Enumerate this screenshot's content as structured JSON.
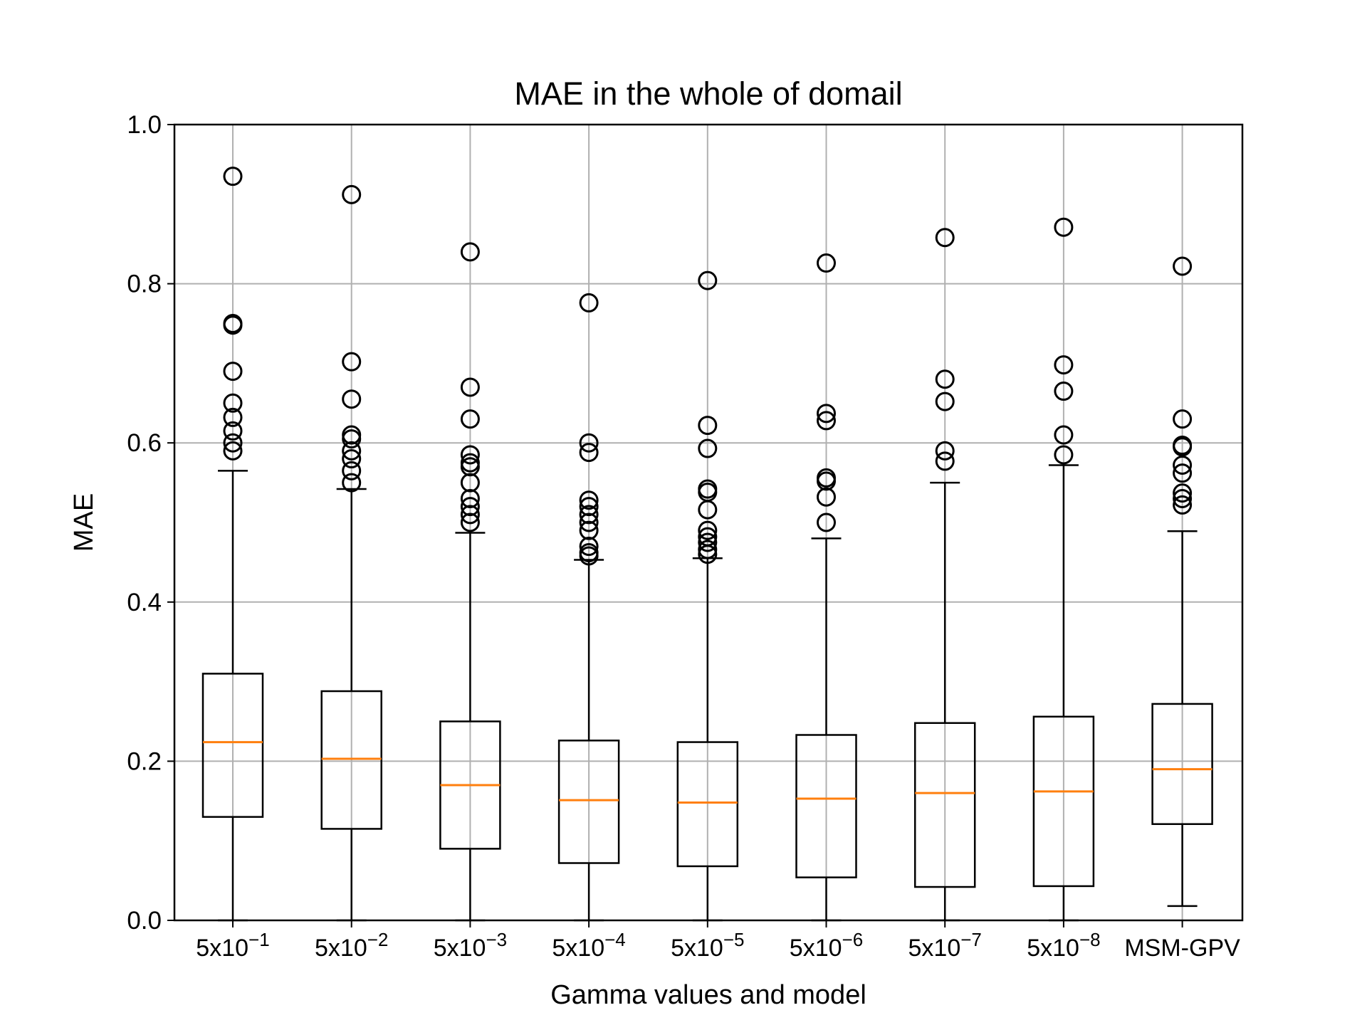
{
  "chart_data": {
    "type": "boxplot",
    "title": "MAE in the whole of domail",
    "xlabel": "Gamma values and model",
    "ylabel": "MAE",
    "ylim": [
      0,
      1.0
    ],
    "yticks": [
      "0.0",
      "0.2",
      "0.4",
      "0.6",
      "0.8",
      "1.0"
    ],
    "grid": true,
    "categories": [
      {
        "base": "5x10",
        "exp": "−1"
      },
      {
        "base": "5x10",
        "exp": "−2"
      },
      {
        "base": "5x10",
        "exp": "−3"
      },
      {
        "base": "5x10",
        "exp": "−4"
      },
      {
        "base": "5x10",
        "exp": "−5"
      },
      {
        "base": "5x10",
        "exp": "−6"
      },
      {
        "base": "5x10",
        "exp": "−7"
      },
      {
        "base": "5x10",
        "exp": "−8"
      },
      {
        "base": "MSM-GPV",
        "exp": ""
      }
    ],
    "boxes": [
      {
        "whislo": 0.0,
        "q1": 0.13,
        "med": 0.224,
        "q3": 0.31,
        "whishi": 0.565,
        "fliers": [
          0.935,
          0.75,
          0.748,
          0.69,
          0.65,
          0.632,
          0.615,
          0.6,
          0.59
        ]
      },
      {
        "whislo": 0.0,
        "q1": 0.115,
        "med": 0.203,
        "q3": 0.288,
        "whishi": 0.542,
        "fliers": [
          0.912,
          0.702,
          0.655,
          0.61,
          0.605,
          0.59,
          0.58,
          0.565,
          0.55
        ]
      },
      {
        "whislo": 0.0,
        "q1": 0.09,
        "med": 0.17,
        "q3": 0.25,
        "whishi": 0.487,
        "fliers": [
          0.84,
          0.67,
          0.63,
          0.585,
          0.575,
          0.57,
          0.55,
          0.53,
          0.52,
          0.51,
          0.5
        ]
      },
      {
        "whislo": 0.0,
        "q1": 0.072,
        "med": 0.151,
        "q3": 0.226,
        "whishi": 0.453,
        "fliers": [
          0.776,
          0.6,
          0.588,
          0.528,
          0.52,
          0.51,
          0.5,
          0.49,
          0.47,
          0.462,
          0.458
        ]
      },
      {
        "whislo": 0.0,
        "q1": 0.068,
        "med": 0.148,
        "q3": 0.224,
        "whishi": 0.455,
        "fliers": [
          0.804,
          0.622,
          0.593,
          0.542,
          0.538,
          0.516,
          0.49,
          0.482,
          0.475,
          0.466,
          0.46
        ]
      },
      {
        "whislo": 0.0,
        "q1": 0.054,
        "med": 0.153,
        "q3": 0.233,
        "whishi": 0.48,
        "fliers": [
          0.826,
          0.637,
          0.628,
          0.556,
          0.552,
          0.532,
          0.5
        ]
      },
      {
        "whislo": 0.0,
        "q1": 0.042,
        "med": 0.16,
        "q3": 0.248,
        "whishi": 0.55,
        "fliers": [
          0.858,
          0.68,
          0.652,
          0.59,
          0.577
        ]
      },
      {
        "whislo": 0.0,
        "q1": 0.043,
        "med": 0.162,
        "q3": 0.256,
        "whishi": 0.572,
        "fliers": [
          0.871,
          0.698,
          0.665,
          0.61,
          0.585
        ]
      },
      {
        "whislo": 0.018,
        "q1": 0.121,
        "med": 0.19,
        "q3": 0.272,
        "whishi": 0.489,
        "fliers": [
          0.822,
          0.63,
          0.597,
          0.595,
          0.572,
          0.562,
          0.537,
          0.53,
          0.522
        ]
      }
    ]
  }
}
